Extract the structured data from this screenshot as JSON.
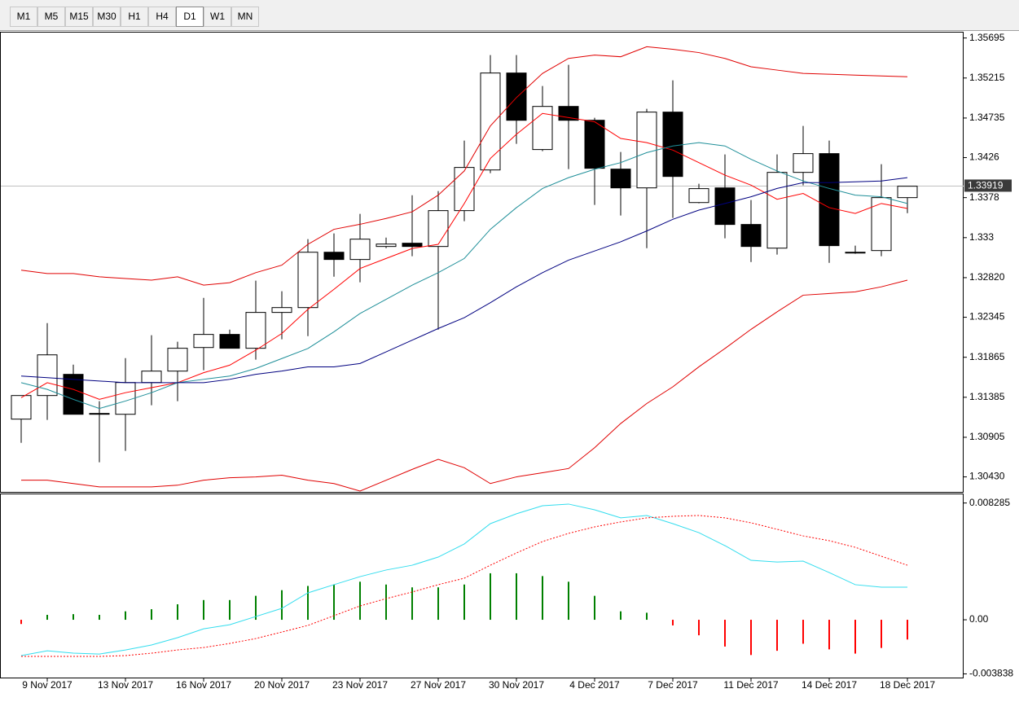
{
  "toolbar": {
    "timeframes": [
      "M1",
      "M5",
      "M15",
      "M30",
      "H1",
      "H4",
      "D1",
      "W1",
      "MN"
    ],
    "active": "D1"
  },
  "chart_data": [
    {
      "type": "candlestick",
      "categories": [
        null,
        "9 Nov 2017",
        null,
        null,
        "13 Nov 2017",
        null,
        null,
        "16 Nov 2017",
        null,
        null,
        "20 Nov 2017",
        null,
        null,
        "23 Nov 2017",
        null,
        null,
        "27 Nov 2017",
        null,
        null,
        "30 Nov 2017",
        null,
        null,
        "4 Dec 2017",
        null,
        null,
        "7 Dec 2017",
        null,
        null,
        "11 Dec 2017",
        null,
        null,
        "14 Dec 2017",
        null,
        null,
        "18 Dec 2017"
      ],
      "open": [
        1.31123,
        1.31406,
        1.3166,
        1.31191,
        1.31181,
        1.31562,
        1.31699,
        1.31982,
        1.32139,
        1.31973,
        1.32403,
        1.32461,
        1.33125,
        1.33038,
        1.33194,
        1.33233,
        1.33194,
        1.33624,
        1.34112,
        1.35275,
        1.34357,
        1.34874,
        1.34708,
        1.34122,
        1.33897,
        1.34806,
        1.33721,
        1.33897,
        1.33458,
        1.33174,
        1.34083,
        1.34308,
        1.33116,
        1.33145,
        1.3378
      ],
      "high": [
        1.31406,
        1.32275,
        1.31777,
        1.31338,
        1.31855,
        1.32129,
        1.32051,
        1.32578,
        1.32197,
        1.32784,
        1.32657,
        1.33282,
        1.3335,
        1.33585,
        1.33301,
        1.33809,
        1.33858,
        1.34464,
        1.3549,
        1.3549,
        1.35119,
        1.35373,
        1.34738,
        1.34327,
        1.34845,
        1.35187,
        1.33946,
        1.34298,
        1.33751,
        1.34298,
        1.3464,
        1.34464,
        1.33204,
        1.34181,
        1.33917
      ],
      "low": [
        1.30839,
        1.31113,
        1.31181,
        1.30605,
        1.30742,
        1.31289,
        1.31338,
        1.31709,
        1.31973,
        1.31836,
        1.3208,
        1.32119,
        1.32832,
        1.32764,
        1.33174,
        1.33077,
        1.32197,
        1.33497,
        1.34073,
        1.34425,
        1.34337,
        1.34122,
        1.33692,
        1.33565,
        1.33174,
        1.33536,
        1.33712,
        1.33292,
        1.33008,
        1.33096,
        1.33927,
        1.32998,
        1.33106,
        1.33077,
        1.33594
      ],
      "close": [
        1.31406,
        1.31894,
        1.31181,
        1.31191,
        1.31562,
        1.31699,
        1.31973,
        1.32139,
        1.31973,
        1.32403,
        1.32461,
        1.33125,
        1.33038,
        1.33282,
        1.33223,
        1.33194,
        1.33624,
        1.34142,
        1.35275,
        1.34708,
        1.34874,
        1.34708,
        1.34132,
        1.33897,
        1.34806,
        1.34034,
        1.33888,
        1.33458,
        1.33194,
        1.34083,
        1.34308,
        1.33204,
        1.33125,
        1.3378,
        1.33917
      ],
      "up_color": "#ffffff",
      "down_color": "#000000",
      "series": [
        {
          "color": "#e00000",
          "values": [
            1.3291,
            1.3287,
            1.3287,
            1.3283,
            1.3281,
            1.3279,
            1.3283,
            1.3273,
            1.3276,
            1.3288,
            1.3297,
            1.3322,
            1.334,
            1.3346,
            1.3353,
            1.3361,
            1.3381,
            1.341,
            1.3464,
            1.3498,
            1.3527,
            1.3545,
            1.3549,
            1.3547,
            1.3559,
            1.3556,
            1.3552,
            1.3545,
            1.3535,
            1.3531,
            1.3527,
            1.3526,
            1.3525,
            1.3524,
            1.3523
          ]
        },
        {
          "color": "#e00000",
          "values": [
            1.3039,
            1.3039,
            1.3035,
            1.3031,
            1.3031,
            1.3031,
            1.3033,
            1.3039,
            1.3042,
            1.3043,
            1.3045,
            1.3039,
            1.3035,
            1.3026,
            1.3039,
            1.3052,
            1.3064,
            1.3054,
            1.3035,
            1.3043,
            1.3048,
            1.3053,
            1.3078,
            1.3107,
            1.3131,
            1.3151,
            1.3175,
            1.3197,
            1.322,
            1.3241,
            1.3261,
            1.3263,
            1.3265,
            1.3271,
            1.3279
          ]
        },
        {
          "color": "#ff0000",
          "values": [
            1.3138,
            1.3156,
            1.3148,
            1.3136,
            1.3144,
            1.315,
            1.3156,
            1.3168,
            1.3177,
            1.3195,
            1.3215,
            1.3244,
            1.3268,
            1.3293,
            1.3305,
            1.3317,
            1.3322,
            1.3371,
            1.3425,
            1.3454,
            1.3479,
            1.3474,
            1.3469,
            1.3449,
            1.3444,
            1.3435,
            1.342,
            1.3405,
            1.3393,
            1.3376,
            1.3383,
            1.3366,
            1.3359,
            1.3371,
            1.3365
          ]
        },
        {
          "color": "#1f8f99",
          "values": [
            1.3156,
            1.3148,
            1.3136,
            1.3125,
            1.3134,
            1.3144,
            1.3156,
            1.316,
            1.3164,
            1.3173,
            1.3185,
            1.3197,
            1.3217,
            1.3239,
            1.3256,
            1.3273,
            1.3288,
            1.3305,
            1.334,
            1.3366,
            1.3389,
            1.3402,
            1.3412,
            1.342,
            1.3432,
            1.344,
            1.3444,
            1.344,
            1.3424,
            1.341,
            1.3398,
            1.3389,
            1.3381,
            1.3379,
            1.3371
          ]
        },
        {
          "color": "#000080",
          "values": [
            1.3164,
            1.3162,
            1.316,
            1.3158,
            1.3156,
            1.3156,
            1.3156,
            1.3156,
            1.316,
            1.3166,
            1.317,
            1.3175,
            1.3175,
            1.3179,
            1.3193,
            1.3207,
            1.3221,
            1.3234,
            1.3252,
            1.3271,
            1.3288,
            1.3303,
            1.3314,
            1.3325,
            1.3338,
            1.3352,
            1.3363,
            1.3371,
            1.3379,
            1.3389,
            1.3396,
            1.3396,
            1.3397,
            1.3398,
            1.3402
          ]
        }
      ],
      "current_price": 1.33919,
      "current_color": "#c0c0c0",
      "ylim": [
        1.3025,
        1.3576
      ],
      "yticks": [
        1.35695,
        1.35215,
        1.34735,
        1.3426,
        1.3378,
        1.333,
        {
          "value": 1.3282,
          "label": "1.32820"
        },
        1.32345,
        1.31865,
        1.31385,
        1.30905,
        {
          "value": 1.3043,
          "label": "1.30430"
        }
      ]
    },
    {
      "type": "macd",
      "histogram": [
        -0.0003,
        0.00035,
        0.0004,
        0.00035,
        0.0006,
        0.00075,
        0.0011,
        0.0014,
        0.0014,
        0.0017,
        0.0021,
        0.0024,
        0.0025,
        0.0027,
        0.0025,
        0.0023,
        0.0023,
        0.0025,
        0.0033,
        0.0033,
        0.0031,
        0.0027,
        0.0017,
        0.0006,
        0.0005,
        -0.0004,
        -0.0011,
        -0.0019,
        -0.0025,
        -0.0022,
        -0.0017,
        -0.0021,
        -0.0024,
        -0.002,
        -0.0014
      ],
      "up_color": "#008000",
      "down_color": "#ff0000",
      "series": [
        {
          "color": "#33ddee",
          "values": [
            -0.00254,
            -0.0022,
            -0.00237,
            -0.00243,
            -0.00214,
            -0.00179,
            -0.00127,
            -0.00064,
            -0.00035,
            0.00023,
            0.00081,
            0.00191,
            0.00249,
            0.00306,
            0.00353,
            0.00387,
            0.00445,
            0.00538,
            0.00682,
            0.00752,
            0.00809,
            0.00821,
            0.0078,
            0.00723,
            0.0074,
            0.00682,
            0.00618,
            0.00526,
            0.00422,
            0.0041,
            0.00416,
            0.00335,
            0.00249,
            0.00231,
            0.00231
          ]
        },
        {
          "color": "#ff0000",
          "dashed": true,
          "values": [
            -0.0026,
            -0.0026,
            -0.0026,
            -0.0026,
            -0.00254,
            -0.00237,
            -0.00214,
            -0.00197,
            -0.00168,
            -0.00133,
            -0.00087,
            -0.0004,
            0.00029,
            0.00098,
            0.0015,
            0.00197,
            0.00249,
            0.00295,
            0.00387,
            0.00474,
            0.00555,
            0.00613,
            0.00659,
            0.00694,
            0.00723,
            0.00734,
            0.0074,
            0.00723,
            0.00688,
            0.00642,
            0.00595,
            0.00561,
            0.00514,
            0.00451,
            0.00387
          ]
        }
      ],
      "ylim": [
        -0.0041,
        0.0089
      ],
      "yticks": [
        0.008285,
        {
          "value": 0,
          "label": "0.00"
        },
        -0.003838
      ]
    }
  ]
}
